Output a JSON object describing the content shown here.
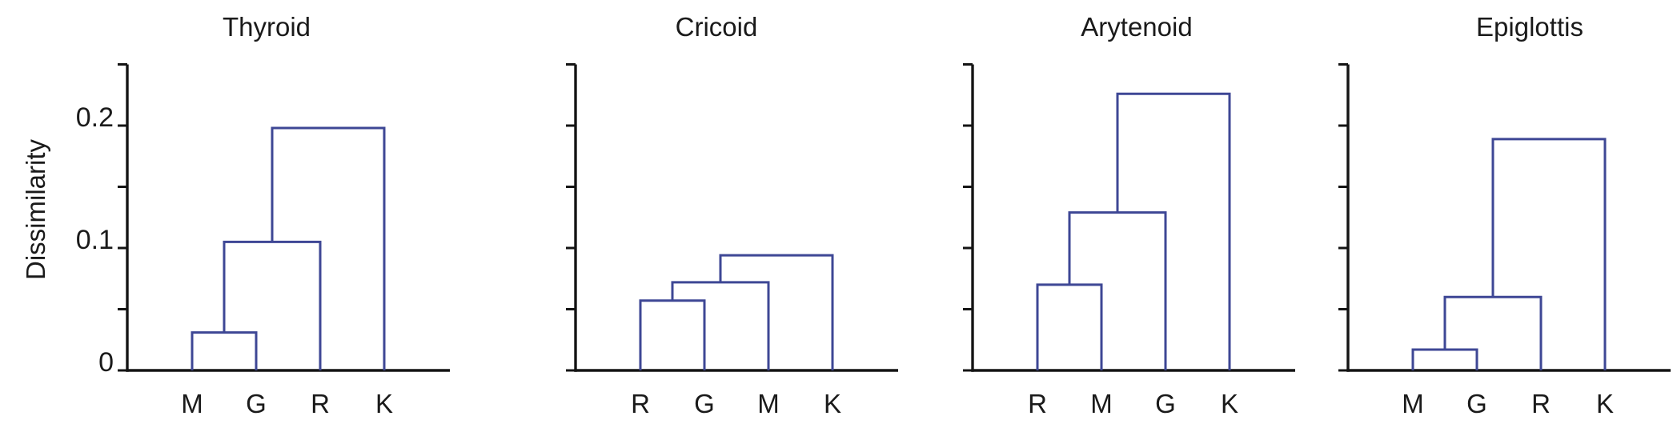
{
  "figure": {
    "ylabel": "Dissimilarity",
    "y_axis": {
      "range": [
        0,
        0.25
      ],
      "tick_values": [
        0,
        0.05,
        0.1,
        0.15,
        0.2,
        0.25
      ],
      "tick_labels": [
        {
          "value": 0,
          "label": "0"
        },
        {
          "value": 0.1,
          "label": "0.1"
        },
        {
          "value": 0.2,
          "label": "0.2"
        }
      ]
    },
    "colors": {
      "dendrogram_line": "#3e4795",
      "axis": "#141414",
      "text": "#1a1a1a",
      "background": "#ffffff"
    }
  },
  "chart_data": [
    {
      "type": "dendrogram",
      "title": "Thyroid",
      "leaves": [
        "M",
        "G",
        "R",
        "K"
      ],
      "linkage_topology": "left-chain",
      "merge_order": [
        "M+G",
        "(M+G)+R",
        "((M+G)+R)+K"
      ],
      "merge_heights": [
        0.031,
        0.105,
        0.198
      ],
      "ylim": [
        0,
        0.25
      ]
    },
    {
      "type": "dendrogram",
      "title": "Cricoid",
      "leaves": [
        "R",
        "G",
        "M",
        "K"
      ],
      "linkage_topology": "left-chain",
      "merge_order": [
        "R+G",
        "(R+G)+M",
        "((R+G)+M)+K"
      ],
      "merge_heights": [
        0.057,
        0.072,
        0.094
      ],
      "ylim": [
        0,
        0.25
      ]
    },
    {
      "type": "dendrogram",
      "title": "Arytenoid",
      "leaves": [
        "R",
        "M",
        "G",
        "K"
      ],
      "linkage_topology": "left-chain",
      "merge_order": [
        "R+M",
        "(R+M)+G",
        "((R+M)+G)+K"
      ],
      "merge_heights": [
        0.07,
        0.129,
        0.226
      ],
      "ylim": [
        0,
        0.25
      ]
    },
    {
      "type": "dendrogram",
      "title": "Epiglottis",
      "leaves": [
        "M",
        "G",
        "R",
        "K"
      ],
      "linkage_topology": "left-chain",
      "merge_order": [
        "M+G",
        "(M+G)+R",
        "((M+G)+R)+K"
      ],
      "merge_heights": [
        0.017,
        0.06,
        0.189
      ],
      "ylim": [
        0,
        0.25
      ]
    }
  ]
}
